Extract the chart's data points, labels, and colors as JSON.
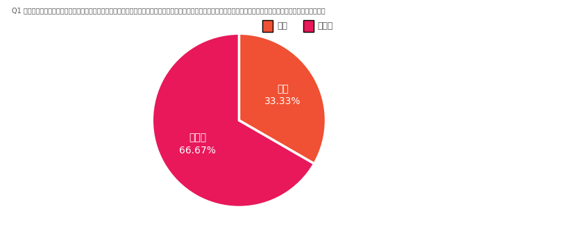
{
  "title": "Q1 以前の調査で現在の雇用形態が「派遣社員」、「無職になる以前は派遣社員だった」とお答えになった方におうかがいします。派遣切りにあったことはありますか？",
  "slices": [
    {
      "label": "はい\n33.33%",
      "value": 33.33,
      "color": "#F05033"
    },
    {
      "label": "いいえ\n66.67%",
      "value": 66.67,
      "color": "#E8185A"
    }
  ],
  "legend_labels": [
    "はい",
    "いいえ"
  ],
  "legend_colors": [
    "#F05033",
    "#E8185A"
  ],
  "label_color": "#ffffff",
  "label_fontsize": 10,
  "title_fontsize": 7.0,
  "background_color": "#ffffff",
  "startangle": 90,
  "label_radii": [
    0.58,
    0.55
  ]
}
